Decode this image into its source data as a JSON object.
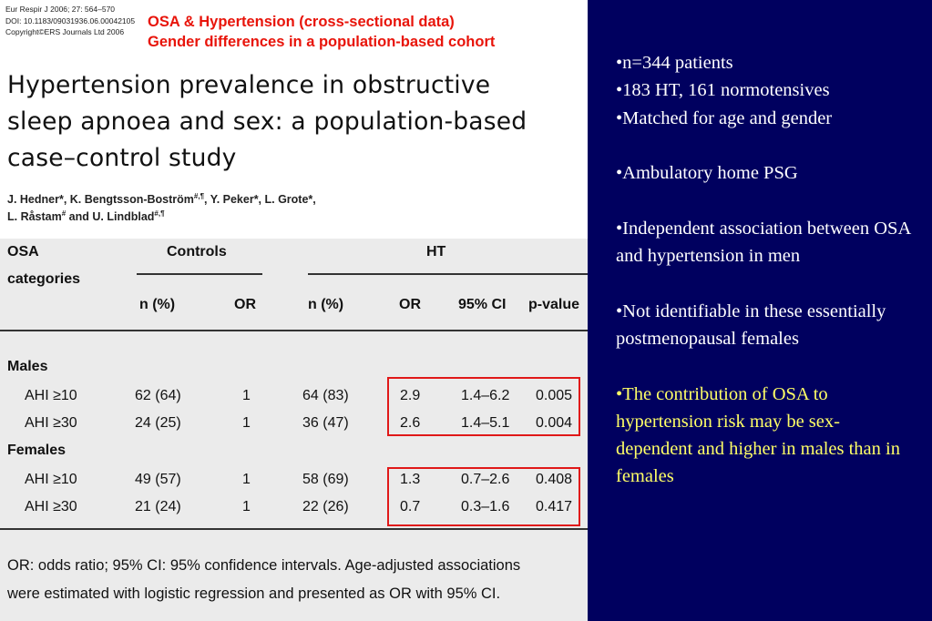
{
  "header": {
    "citation": [
      "Eur Respir J 2006; 27: 564–570",
      "DOI: 10.1183/09031936.06.00042105",
      "Copyright©ERS Journals Ltd 2006"
    ],
    "red_title": [
      "OSA & Hypertension (cross-sectional data)",
      "Gender differences in a population-based cohort"
    ],
    "paper_title": [
      "Hypertension prevalence in obstructive",
      "sleep apnoea and sex: a population-based",
      "case–control study"
    ],
    "authors_line1": "J. Hedner*, K. Bengtsson-Boström",
    "authors_sup1": "#,¶",
    "authors_line1b": ", Y. Peker*, L. Grote*,",
    "authors_line2a": "L. Råstam",
    "authors_sup2": "#",
    "authors_line2b": " and U. Lindblad",
    "authors_sup3": "#,¶"
  },
  "table": {
    "col_osa": "OSA",
    "col_categories": "categories",
    "group_controls": "Controls",
    "group_ht": "HT",
    "sub_n": "n (%)",
    "sub_or": "OR",
    "sub_ci": "95% CI",
    "sub_p": "p-value",
    "section_males": "Males",
    "section_females": "Females",
    "rows": [
      {
        "label": "AHI ≥10",
        "c_n": "62 (64)",
        "c_or": "1",
        "h_n": "64 (83)",
        "h_or": "2.9",
        "ci": "1.4–6.2",
        "p": "0.005"
      },
      {
        "label": "AHI ≥30",
        "c_n": "24 (25)",
        "c_or": "1",
        "h_n": "36 (47)",
        "h_or": "2.6",
        "ci": "1.4–5.1",
        "p": "0.004"
      },
      {
        "label": "AHI ≥10",
        "c_n": "49 (57)",
        "c_or": "1",
        "h_n": "58 (69)",
        "h_or": "1.3",
        "ci": "0.7–2.6",
        "p": "0.408"
      },
      {
        "label": "AHI ≥30",
        "c_n": "21 (24)",
        "c_or": "1",
        "h_n": "22 (26)",
        "h_or": "0.7",
        "ci": "0.3–1.6",
        "p": "0.417"
      }
    ],
    "footnote": [
      "OR: odds ratio; 95% CI: 95% confidence intervals. Age-adjusted associations",
      "were estimated with logistic regression and presented as OR with 95% CI."
    ]
  },
  "bullets": [
    "•n=344 patients",
    "•183 HT, 161 normotensives",
    "•Matched for age and gender",
    "",
    "•Ambulatory home PSG",
    "",
    "•Independent association between OSA and hypertension in men",
    "",
    "•Not identifiable in these essentially postmenopausal females",
    "",
    "•The contribution of OSA to hypertension risk may be sex-dependent and higher in males than in females"
  ],
  "colors": {
    "background": "#00005f",
    "accent_red": "#e8140a",
    "highlight_yellow": "#ffff66",
    "table_bg": "#ebebeb"
  }
}
